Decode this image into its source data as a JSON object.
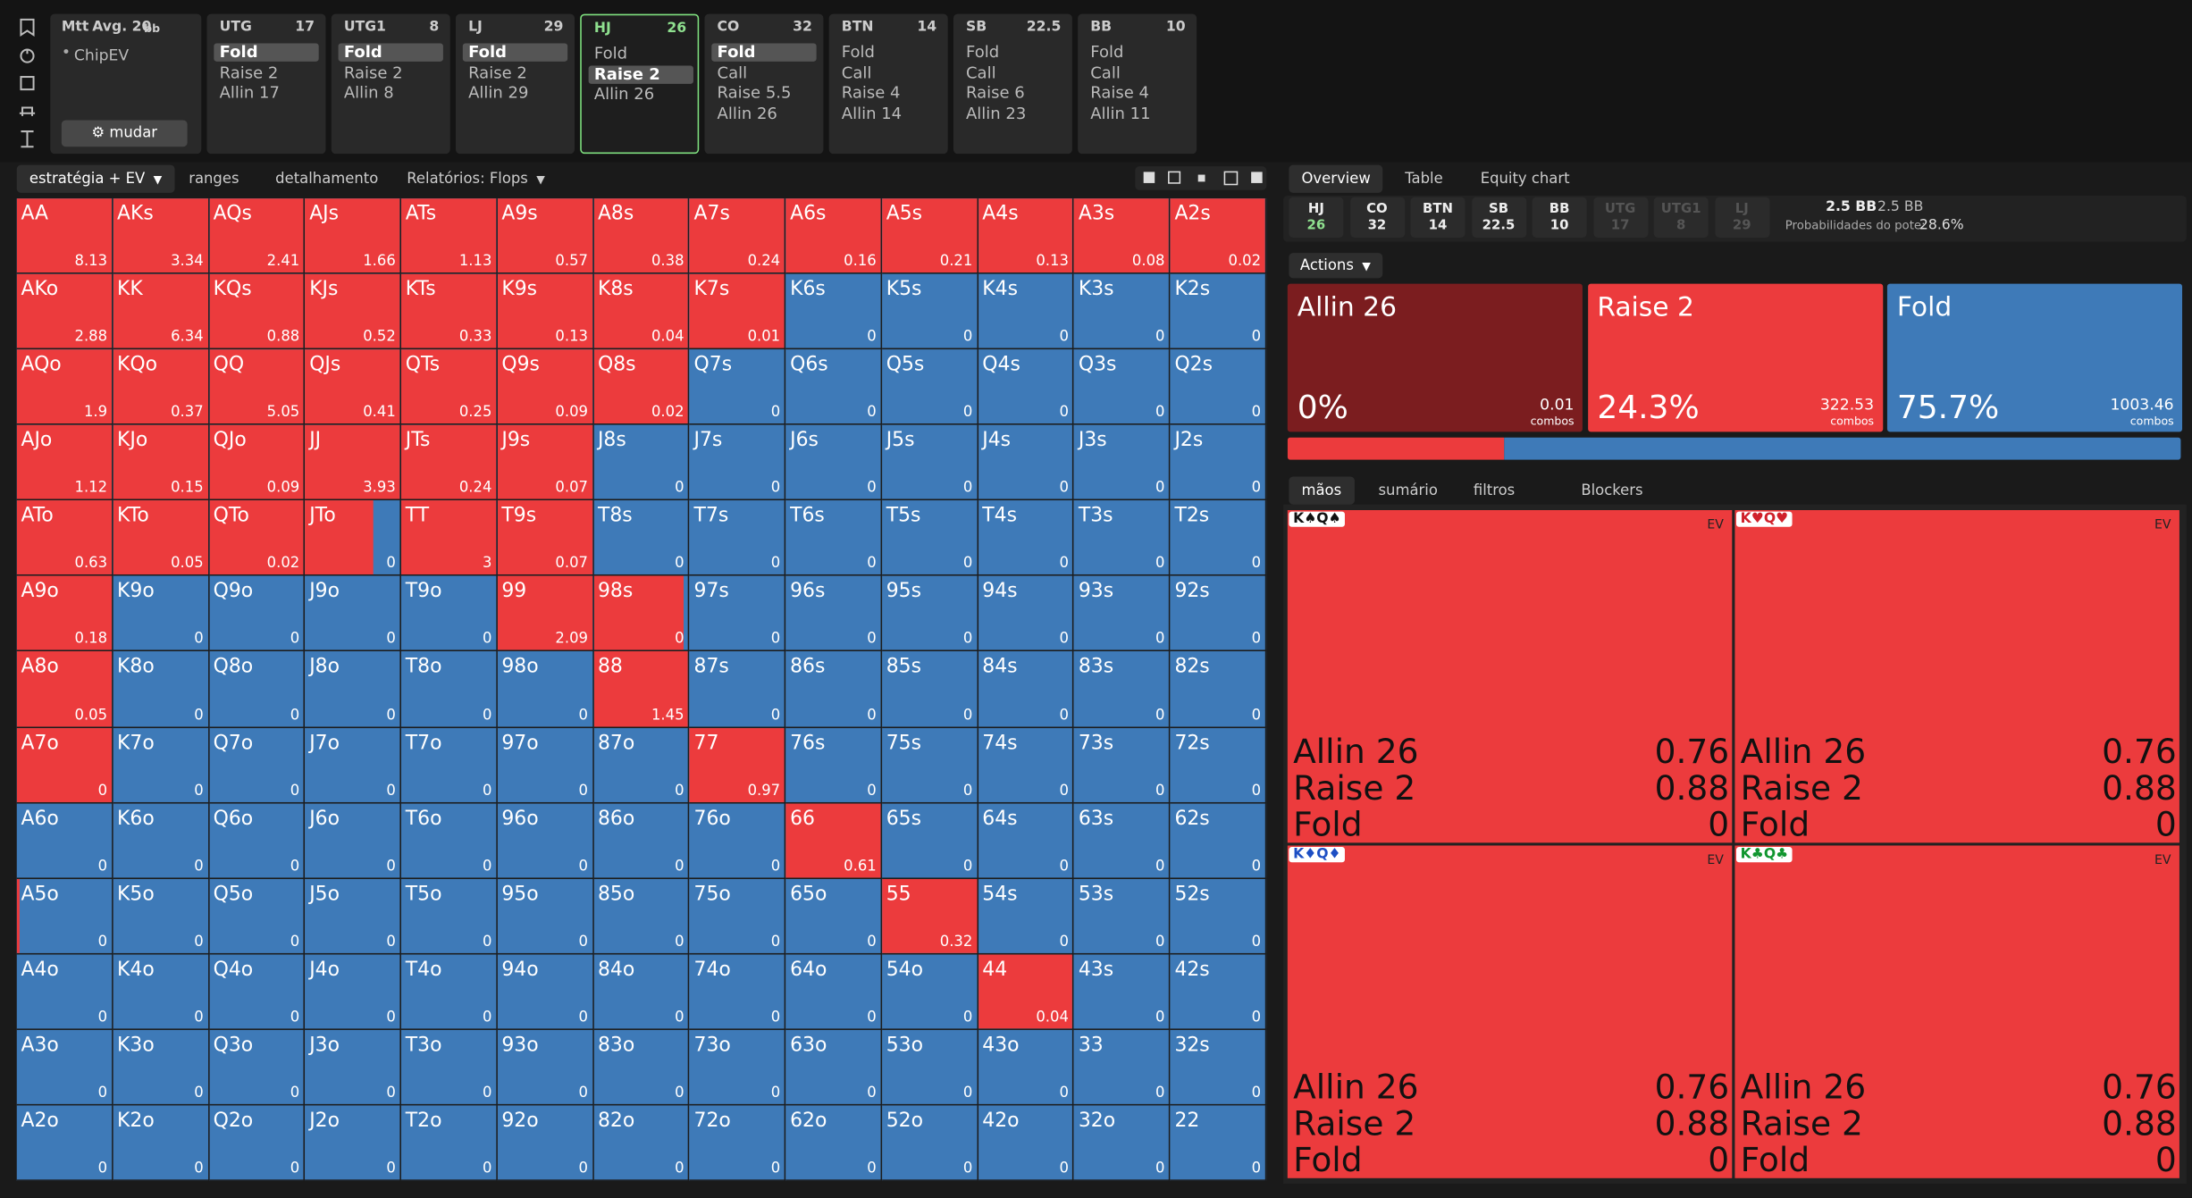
{
  "info": {
    "game": "Mtt",
    "avg": "Avg. 20",
    "unit": "bb",
    "mode": "ChipEV",
    "button": "mudar"
  },
  "positions": [
    {
      "name": "UTG",
      "stack": 17,
      "actions": [
        "Fold",
        "Raise 2",
        "Allin 17"
      ],
      "selected": 0
    },
    {
      "name": "UTG1",
      "stack": 8,
      "actions": [
        "Fold",
        "Raise 2",
        "Allin 8"
      ],
      "selected": 0
    },
    {
      "name": "LJ",
      "stack": 29,
      "actions": [
        "Fold",
        "Raise 2",
        "Allin 29"
      ],
      "selected": 0
    },
    {
      "name": "HJ",
      "stack": 26,
      "actions": [
        "Fold",
        "Raise 2",
        "Allin 26"
      ],
      "selected": 1,
      "active": true
    },
    {
      "name": "CO",
      "stack": 32,
      "actions": [
        "Fold",
        "Call",
        "Raise 5.5",
        "Allin 26"
      ],
      "selected": 0
    },
    {
      "name": "BTN",
      "stack": 14,
      "actions": [
        "Fold",
        "Call",
        "Raise 4",
        "Allin 14"
      ]
    },
    {
      "name": "SB",
      "stack": 22.5,
      "actions": [
        "Fold",
        "Call",
        "Raise 6",
        "Allin 23"
      ]
    },
    {
      "name": "BB",
      "stack": 10,
      "actions": [
        "Fold",
        "Call",
        "Raise 4",
        "Allin 11"
      ]
    }
  ],
  "tabs": [
    "estratégia + EV",
    "ranges",
    "detalhamento",
    "Relatórios: Flops"
  ],
  "grid": {
    "hands": [
      [
        "AA",
        "AKs",
        "AQs",
        "AJs",
        "ATs",
        "A9s",
        "A8s",
        "A7s",
        "A6s",
        "A5s",
        "A4s",
        "A3s",
        "A2s"
      ],
      [
        "AKo",
        "KK",
        "KQs",
        "KJs",
        "KTs",
        "K9s",
        "K8s",
        "K7s",
        "K6s",
        "K5s",
        "K4s",
        "K3s",
        "K2s"
      ],
      [
        "AQo",
        "KQo",
        "QQ",
        "QJs",
        "QTs",
        "Q9s",
        "Q8s",
        "Q7s",
        "Q6s",
        "Q5s",
        "Q4s",
        "Q3s",
        "Q2s"
      ],
      [
        "AJo",
        "KJo",
        "QJo",
        "JJ",
        "JTs",
        "J9s",
        "J8s",
        "J7s",
        "J6s",
        "J5s",
        "J4s",
        "J3s",
        "J2s"
      ],
      [
        "ATo",
        "KTo",
        "QTo",
        "JTo",
        "TT",
        "T9s",
        "T8s",
        "T7s",
        "T6s",
        "T5s",
        "T4s",
        "T3s",
        "T2s"
      ],
      [
        "A9o",
        "K9o",
        "Q9o",
        "J9o",
        "T9o",
        "99",
        "98s",
        "97s",
        "96s",
        "95s",
        "94s",
        "93s",
        "92s"
      ],
      [
        "A8o",
        "K8o",
        "Q8o",
        "J8o",
        "T8o",
        "98o",
        "88",
        "87s",
        "86s",
        "85s",
        "84s",
        "83s",
        "82s"
      ],
      [
        "A7o",
        "K7o",
        "Q7o",
        "J7o",
        "T7o",
        "97o",
        "87o",
        "77",
        "76s",
        "75s",
        "74s",
        "73s",
        "72s"
      ],
      [
        "A6o",
        "K6o",
        "Q6o",
        "J6o",
        "T6o",
        "96o",
        "86o",
        "76o",
        "66",
        "65s",
        "64s",
        "63s",
        "62s"
      ],
      [
        "A5o",
        "K5o",
        "Q5o",
        "J5o",
        "T5o",
        "95o",
        "85o",
        "75o",
        "65o",
        "55",
        "54s",
        "53s",
        "52s"
      ],
      [
        "A4o",
        "K4o",
        "Q4o",
        "J4o",
        "T4o",
        "94o",
        "84o",
        "74o",
        "64o",
        "54o",
        "44",
        "43s",
        "42s"
      ],
      [
        "A3o",
        "K3o",
        "Q3o",
        "J3o",
        "T3o",
        "93o",
        "83o",
        "73o",
        "63o",
        "53o",
        "43o",
        "33",
        "32s"
      ],
      [
        "A2o",
        "K2o",
        "Q2o",
        "J2o",
        "T2o",
        "92o",
        "82o",
        "72o",
        "62o",
        "52o",
        "42o",
        "32o",
        "22"
      ]
    ],
    "ev": [
      [
        8.13,
        3.34,
        2.41,
        1.66,
        1.13,
        0.57,
        0.38,
        0.24,
        0.16,
        0.21,
        0.13,
        0.08,
        0.02
      ],
      [
        2.88,
        6.34,
        0.88,
        0.52,
        0.33,
        0.13,
        0.04,
        0.01,
        0,
        0,
        0,
        0,
        0
      ],
      [
        1.9,
        0.37,
        5.05,
        0.41,
        0.25,
        0.09,
        0.02,
        0,
        0,
        0,
        0,
        0,
        0
      ],
      [
        1.12,
        0.15,
        0.09,
        3.93,
        0.24,
        0.07,
        0,
        0,
        0,
        0,
        0,
        0,
        0
      ],
      [
        0.63,
        0.05,
        0.02,
        0,
        3,
        0.07,
        0,
        0,
        0,
        0,
        0,
        0,
        0
      ],
      [
        0.18,
        0,
        0,
        0,
        0,
        2.09,
        0,
        0,
        0,
        0,
        0,
        0,
        0
      ],
      [
        0.05,
        0,
        0,
        0,
        0,
        0,
        1.45,
        0,
        0,
        0,
        0,
        0,
        0
      ],
      [
        0,
        0,
        0,
        0,
        0,
        0,
        0,
        0.97,
        0,
        0,
        0,
        0,
        0
      ],
      [
        0,
        0,
        0,
        0,
        0,
        0,
        0,
        0,
        0.61,
        0,
        0,
        0,
        0
      ],
      [
        0,
        0,
        0,
        0,
        0,
        0,
        0,
        0,
        0,
        0.32,
        0,
        0,
        0
      ],
      [
        0,
        0,
        0,
        0,
        0,
        0,
        0,
        0,
        0,
        0,
        0.04,
        0,
        0
      ],
      [
        0,
        0,
        0,
        0,
        0,
        0,
        0,
        0,
        0,
        0,
        0,
        0,
        0
      ],
      [
        0,
        0,
        0,
        0,
        0,
        0,
        0,
        0,
        0,
        0,
        0,
        0,
        0
      ]
    ],
    "raise": [
      [
        1,
        1,
        1,
        1,
        1,
        1,
        1,
        1,
        1,
        1,
        1,
        1,
        1
      ],
      [
        1,
        1,
        1,
        1,
        1,
        1,
        1,
        1,
        0,
        0,
        0,
        0,
        0
      ],
      [
        1,
        1,
        1,
        1,
        1,
        1,
        1,
        0,
        0,
        0,
        0,
        0,
        0
      ],
      [
        1,
        1,
        1,
        1,
        1,
        1,
        0,
        0,
        0,
        0,
        0,
        0,
        0
      ],
      [
        1,
        1,
        1,
        0.72,
        1,
        1,
        0,
        0,
        0,
        0,
        0,
        0,
        0
      ],
      [
        1,
        0,
        0,
        0,
        0,
        1,
        0.95,
        0,
        0,
        0,
        0,
        0,
        0
      ],
      [
        1,
        0,
        0,
        0,
        0,
        0,
        1,
        0,
        0,
        0,
        0,
        0,
        0
      ],
      [
        1,
        0,
        0,
        0,
        0,
        0,
        0,
        1,
        0,
        0,
        0,
        0,
        0
      ],
      [
        0,
        0,
        0,
        0,
        0,
        0,
        0,
        0,
        1,
        0,
        0,
        0,
        0
      ],
      [
        0.03,
        0,
        0,
        0,
        0,
        0,
        0,
        0,
        0,
        1,
        0,
        0,
        0
      ],
      [
        0,
        0,
        0,
        0,
        0,
        0,
        0,
        0,
        0,
        0,
        1,
        0,
        0
      ],
      [
        0,
        0,
        0,
        0,
        0,
        0,
        0,
        0,
        0,
        0,
        0,
        0,
        0
      ],
      [
        0,
        0,
        0,
        0,
        0,
        0,
        0,
        0,
        0,
        0,
        0,
        0,
        0
      ]
    ],
    "raise_color": "#ec3b3d",
    "fold_color": "#3e7ab8"
  },
  "overview": {
    "tabs": [
      "Overview",
      "Table",
      "Equity chart"
    ],
    "stacks": [
      {
        "name": "HJ",
        "stack": 26
      },
      {
        "name": "CO",
        "stack": 32
      },
      {
        "name": "BTN",
        "stack": 14
      },
      {
        "name": "SB",
        "stack": 22.5
      },
      {
        "name": "BB",
        "stack": 10
      },
      {
        "name": "UTG",
        "stack": 17,
        "folded": true
      },
      {
        "name": "UTG1",
        "stack": 8,
        "folded": true
      },
      {
        "name": "LJ",
        "stack": 29,
        "folded": true
      }
    ],
    "pot": "2.5 BB",
    "pot2": "2.5 BB",
    "odds_label": "Probabilidades do pote:",
    "odds": "28.6%",
    "actions_label": "Actions",
    "actions": [
      {
        "name": "Allin 26",
        "freq": 0,
        "freq_label": "0%",
        "combos": 0.01,
        "unit": "combos",
        "color": "#7b1d1f"
      },
      {
        "name": "Raise 2",
        "freq": 24.3,
        "freq_label": "24.3%",
        "combos": 322.53,
        "unit": "combos",
        "color": "#ec3b3d"
      },
      {
        "name": "Fold",
        "freq": 75.7,
        "freq_label": "75.7%",
        "combos": 1003.46,
        "unit": "combos",
        "color": "#3e7ab8"
      }
    ],
    "hand_tabs": [
      "mãos",
      "sumário",
      "filtros",
      "Blockers"
    ],
    "hands": [
      {
        "label": "K♠Q♠",
        "color": "#111111",
        "ev": "EV",
        "rows": [
          [
            "Allin 26",
            0.76
          ],
          [
            "Raise 2",
            0.88
          ],
          [
            "Fold",
            0
          ]
        ]
      },
      {
        "label": "K♥Q♥",
        "color": "#d0202a",
        "ev": "EV",
        "rows": [
          [
            "Allin 26",
            0.76
          ],
          [
            "Raise 2",
            0.88
          ],
          [
            "Fold",
            0
          ]
        ]
      },
      {
        "label": "K♦Q♦",
        "color": "#1d4fc4",
        "ev": "EV",
        "rows": [
          [
            "Allin 26",
            0.76
          ],
          [
            "Raise 2",
            0.88
          ],
          [
            "Fold",
            0
          ]
        ]
      },
      {
        "label": "K♣Q♣",
        "color": "#11962f",
        "ev": "EV",
        "rows": [
          [
            "Allin 26",
            0.76
          ],
          [
            "Raise 2",
            0.88
          ],
          [
            "Fold",
            0
          ]
        ]
      }
    ]
  }
}
